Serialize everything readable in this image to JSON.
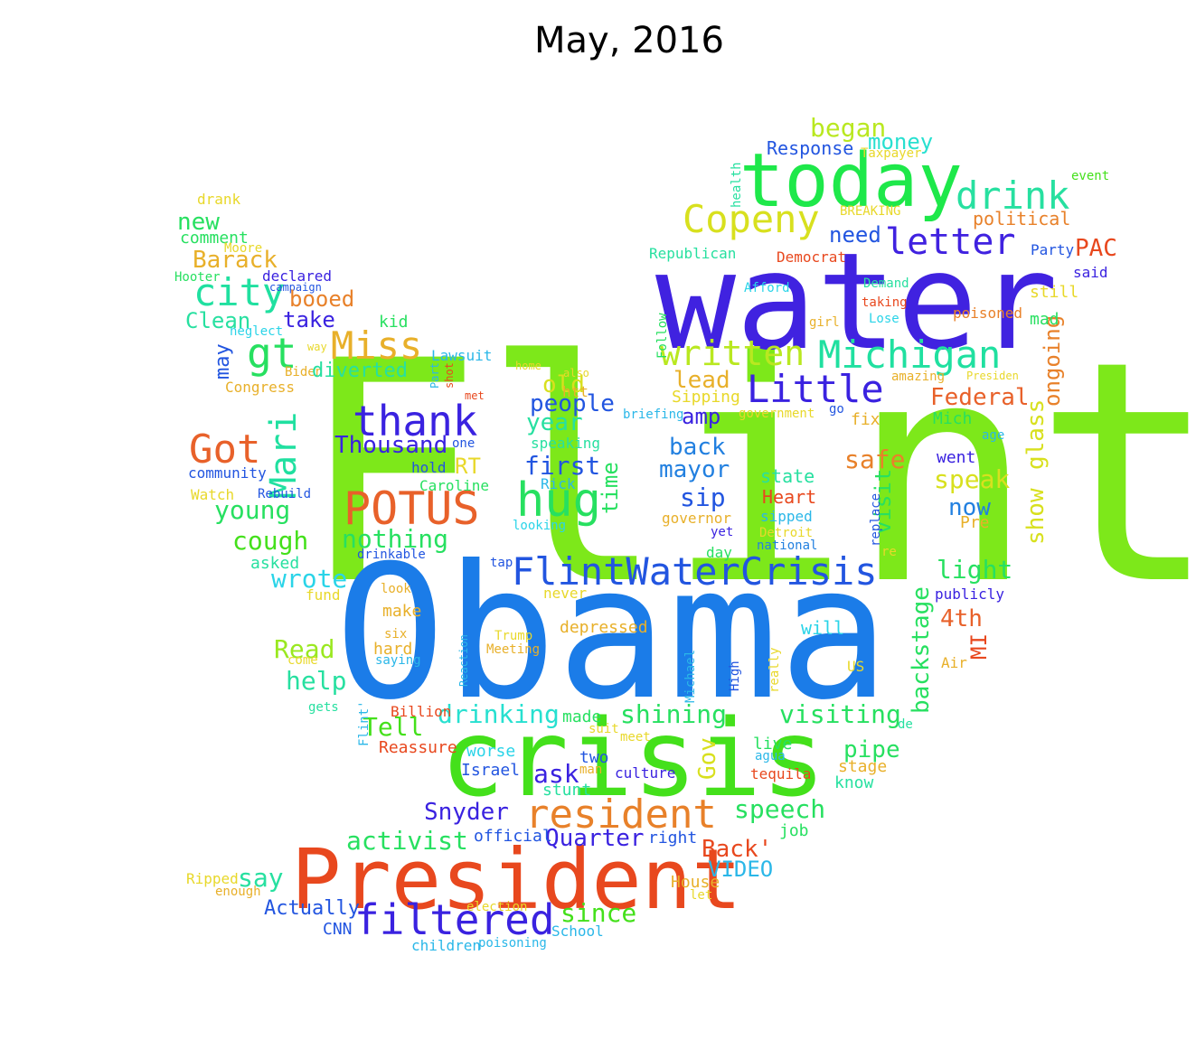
{
  "title": "May, 2016",
  "words": [
    {
      "text": "Flint",
      "color": "#7de81a"
    },
    {
      "text": "Obama",
      "color": "#1b7ce8"
    },
    {
      "text": "water",
      "color": "#4022e0"
    },
    {
      "text": "crisis",
      "color": "#44e01b"
    },
    {
      "text": "President",
      "color": "#e8481e"
    },
    {
      "text": "today",
      "color": "#1ee84a"
    },
    {
      "text": "FlintWaterCrisis",
      "color": "#2255e0"
    },
    {
      "text": "resident",
      "color": "#e8812a"
    },
    {
      "text": "Michigan",
      "color": "#20e0a0"
    },
    {
      "text": "POTUS",
      "color": "#e8612a"
    },
    {
      "text": "thank",
      "color": "#3a22e0"
    },
    {
      "text": "Copeny",
      "color": "#d8e01e"
    },
    {
      "text": "Little",
      "color": "#3a22e0"
    },
    {
      "text": "hug",
      "color": "#27e060"
    },
    {
      "text": "written",
      "color": "#b9e820"
    },
    {
      "text": "drink",
      "color": "#27e0a0"
    },
    {
      "text": "letter",
      "color": "#4022e0"
    },
    {
      "text": "filtered",
      "color": "#3a22e0"
    },
    {
      "text": "Got",
      "color": "#e8612a"
    },
    {
      "text": "Mari",
      "color": "#20e0a0"
    },
    {
      "text": "Miss",
      "color": "#e8b02a"
    },
    {
      "text": "city",
      "color": "#20e0a0"
    },
    {
      "text": "gt",
      "color": "#27e060"
    },
    {
      "text": "Barack",
      "color": "#e8b02a"
    },
    {
      "text": "shining",
      "color": "#27e060"
    },
    {
      "text": "visiting",
      "color": "#27e060"
    },
    {
      "text": "drinking",
      "color": "#27e0d0"
    },
    {
      "text": "backstage",
      "color": "#27e060"
    },
    {
      "text": "Snyder",
      "color": "#3a22e0"
    },
    {
      "text": "activist",
      "color": "#27e060"
    },
    {
      "text": "speech",
      "color": "#27e060"
    },
    {
      "text": "Quarter",
      "color": "#3a22e0"
    },
    {
      "text": "Back'",
      "color": "#e8481e"
    },
    {
      "text": "VIDEO",
      "color": "#2ab7e8"
    },
    {
      "text": "since",
      "color": "#44e01b"
    },
    {
      "text": "Tell",
      "color": "#44e01b"
    },
    {
      "text": "Thousand",
      "color": "#3a22e0"
    },
    {
      "text": "people",
      "color": "#2255e0"
    },
    {
      "text": "first",
      "color": "#2255e0"
    },
    {
      "text": "year",
      "color": "#27e0a0"
    },
    {
      "text": "old",
      "color": "#d8e01e"
    },
    {
      "text": "lead",
      "color": "#e8b02a"
    },
    {
      "text": "amp",
      "color": "#3a22e0"
    },
    {
      "text": "back",
      "color": "#2280e0"
    },
    {
      "text": "mayor",
      "color": "#2280e0"
    },
    {
      "text": "sip",
      "color": "#2255e0"
    },
    {
      "text": "time",
      "color": "#27e060"
    },
    {
      "text": "young",
      "color": "#27e060"
    },
    {
      "text": "cough",
      "color": "#44e01b"
    },
    {
      "text": "nothing",
      "color": "#27e060"
    },
    {
      "text": "wrote",
      "color": "#2ad4e8"
    },
    {
      "text": "Read",
      "color": "#9ae820"
    },
    {
      "text": "help",
      "color": "#27e0a0"
    },
    {
      "text": "say",
      "color": "#27e0a0"
    },
    {
      "text": "Actually",
      "color": "#2255e0"
    },
    {
      "text": "CNN",
      "color": "#2255e0"
    },
    {
      "text": "School",
      "color": "#2ab7e8"
    },
    {
      "text": "children",
      "color": "#2ab7e8"
    },
    {
      "text": "poisoning",
      "color": "#2ab7e8"
    },
    {
      "text": "election",
      "color": "#e8d82a"
    },
    {
      "text": "official",
      "color": "#2255e0"
    },
    {
      "text": "right",
      "color": "#2255e0"
    },
    {
      "text": "job",
      "color": "#27e060"
    },
    {
      "text": "House",
      "color": "#e8b02a"
    },
    {
      "text": "let",
      "color": "#e8d82a"
    },
    {
      "text": "Ripped",
      "color": "#e8d82a"
    },
    {
      "text": "enough",
      "color": "#e8b02a"
    },
    {
      "text": "Israel",
      "color": "#2255e0"
    },
    {
      "text": "ask",
      "color": "#3a22e0"
    },
    {
      "text": "stunt",
      "color": "#27e0a0"
    },
    {
      "text": "worse",
      "color": "#2ad4e8"
    },
    {
      "text": "two",
      "color": "#2255e0"
    },
    {
      "text": "man",
      "color": "#e8b02a"
    },
    {
      "text": "culture",
      "color": "#3a22e0"
    },
    {
      "text": "tequila",
      "color": "#e8481e"
    },
    {
      "text": "live",
      "color": "#27e060"
    },
    {
      "text": "agua",
      "color": "#2ab7e8"
    },
    {
      "text": "stage",
      "color": "#e8b02a"
    },
    {
      "text": "know",
      "color": "#27e0a0"
    },
    {
      "text": "pipe",
      "color": "#27e060"
    },
    {
      "text": "Reassure",
      "color": "#e8481e"
    },
    {
      "text": "Billion",
      "color": "#e8481e"
    },
    {
      "text": "made",
      "color": "#27e060"
    },
    {
      "text": "suit",
      "color": "#e8d82a"
    },
    {
      "text": "meet",
      "color": "#e8d82a"
    },
    {
      "text": "Gov",
      "color": "#d8e01e"
    },
    {
      "text": "safe",
      "color": "#e8812a"
    },
    {
      "text": "visit",
      "color": "#27e060"
    },
    {
      "text": "Federal",
      "color": "#e8612a"
    },
    {
      "text": "ongoing",
      "color": "#e8812a"
    },
    {
      "text": "glass",
      "color": "#d8e01e"
    },
    {
      "text": "show",
      "color": "#d8e01e"
    },
    {
      "text": "speak",
      "color": "#d8e01e"
    },
    {
      "text": "now",
      "color": "#2280e0"
    },
    {
      "text": "Pre",
      "color": "#e8b02a"
    },
    {
      "text": "went",
      "color": "#3a22e0"
    },
    {
      "text": "Mich",
      "color": "#27e060"
    },
    {
      "text": "age",
      "color": "#2ab7e8"
    },
    {
      "text": "light",
      "color": "#27e060"
    },
    {
      "text": "4th",
      "color": "#e8612a"
    },
    {
      "text": "MI",
      "color": "#e8481e"
    },
    {
      "text": "publicly",
      "color": "#3a22e0"
    },
    {
      "text": "Air",
      "color": "#e8b02a"
    },
    {
      "text": "US",
      "color": "#e8d82a"
    },
    {
      "text": "de",
      "color": "#27e0a0"
    },
    {
      "text": "depressed",
      "color": "#e8b02a"
    },
    {
      "text": "will",
      "color": "#2ad4e8"
    },
    {
      "text": "Heart",
      "color": "#e8481e"
    },
    {
      "text": "state",
      "color": "#27e0a0"
    },
    {
      "text": "sipped",
      "color": "#2ab7e8"
    },
    {
      "text": "governor",
      "color": "#e8b02a"
    },
    {
      "text": "Detroit",
      "color": "#e8d82a"
    },
    {
      "text": "national",
      "color": "#2280e0"
    },
    {
      "text": "day",
      "color": "#27e060"
    },
    {
      "text": "yet",
      "color": "#3a22e0"
    },
    {
      "text": "replace",
      "color": "#2255e0"
    },
    {
      "text": "re",
      "color": "#e8d82a"
    },
    {
      "text": "fix",
      "color": "#e8b02a"
    },
    {
      "text": "go",
      "color": "#2255e0"
    },
    {
      "text": "government",
      "color": "#e8d82a"
    },
    {
      "text": "Sipping",
      "color": "#e8d82a"
    },
    {
      "text": "briefing",
      "color": "#2ab7e8"
    },
    {
      "text": "money",
      "color": "#27e0d0"
    },
    {
      "text": "began",
      "color": "#b9e820"
    },
    {
      "text": "Response",
      "color": "#2255e0"
    },
    {
      "text": "Taxpayer",
      "color": "#e8d82a"
    },
    {
      "text": "need",
      "color": "#2255e0"
    },
    {
      "text": "BREAKING",
      "color": "#e8d82a"
    },
    {
      "text": "political",
      "color": "#e8812a"
    },
    {
      "text": "PAC",
      "color": "#e8481e"
    },
    {
      "text": "Party",
      "color": "#2255e0"
    },
    {
      "text": "said",
      "color": "#3a22e0"
    },
    {
      "text": "still",
      "color": "#e8d82a"
    },
    {
      "text": "mad",
      "color": "#27e060"
    },
    {
      "text": "poisoned",
      "color": "#e8812a"
    },
    {
      "text": "event",
      "color": "#44e01b"
    },
    {
      "text": "Republican",
      "color": "#27e0a0"
    },
    {
      "text": "Democrat",
      "color": "#e8481e"
    },
    {
      "text": "Afford",
      "color": "#2ad4e8"
    },
    {
      "text": "Demand",
      "color": "#27e0a0"
    },
    {
      "text": "taking",
      "color": "#e8481e"
    },
    {
      "text": "Lose",
      "color": "#2ad4e8"
    },
    {
      "text": "girl",
      "color": "#e8b02a"
    },
    {
      "text": "amazing",
      "color": "#e8b02a"
    },
    {
      "text": "Presiden",
      "color": "#e8d82a"
    },
    {
      "text": "health",
      "color": "#27e0a0"
    },
    {
      "text": "Follow",
      "color": "#27e060"
    },
    {
      "text": "new",
      "color": "#27e060"
    },
    {
      "text": "comment",
      "color": "#27e060"
    },
    {
      "text": "drank",
      "color": "#e8d82a"
    },
    {
      "text": "Moore",
      "color": "#e8d82a"
    },
    {
      "text": "Hooter",
      "color": "#27e060"
    },
    {
      "text": "declared",
      "color": "#3a22e0"
    },
    {
      "text": "campaign",
      "color": "#2255e0"
    },
    {
      "text": "booed",
      "color": "#e8812a"
    },
    {
      "text": "take",
      "color": "#3a22e0"
    },
    {
      "text": "Clean",
      "color": "#27e0a0"
    },
    {
      "text": "neglect",
      "color": "#2ad4e8"
    },
    {
      "text": "kid",
      "color": "#27e060"
    },
    {
      "text": "may",
      "color": "#2255e0"
    },
    {
      "text": "way",
      "color": "#e8d82a"
    },
    {
      "text": "Biden",
      "color": "#e8b02a"
    },
    {
      "text": "diverted",
      "color": "#27e0a0"
    },
    {
      "text": "Congress",
      "color": "#e8b02a"
    },
    {
      "text": "Lawsuit",
      "color": "#2ab7e8"
    },
    {
      "text": "home",
      "color": "#e8d82a"
    },
    {
      "text": "also",
      "color": "#e8d82a"
    },
    {
      "text": "htt",
      "color": "#e8b02a"
    },
    {
      "text": "Part",
      "color": "#2ab7e8"
    },
    {
      "text": "shot",
      "color": "#e8481e"
    },
    {
      "text": "met",
      "color": "#e8481e"
    },
    {
      "text": "RT",
      "color": "#e8d82a"
    },
    {
      "text": "one",
      "color": "#2255e0"
    },
    {
      "text": "hold",
      "color": "#2255e0"
    },
    {
      "text": "speaking",
      "color": "#27e0a0"
    },
    {
      "text": "Caroline",
      "color": "#27e060"
    },
    {
      "text": "Rick",
      "color": "#2ab7e8"
    },
    {
      "text": "looking",
      "color": "#2ad4e8"
    },
    {
      "text": "community",
      "color": "#2255e0"
    },
    {
      "text": "Watch",
      "color": "#e8d82a"
    },
    {
      "text": "Rebuild",
      "color": "#2255e0"
    },
    {
      "text": "asked",
      "color": "#27e0a0"
    },
    {
      "text": "fund",
      "color": "#e8d82a"
    },
    {
      "text": "drinkable",
      "color": "#2255e0"
    },
    {
      "text": "tap",
      "color": "#2255e0"
    },
    {
      "text": "look",
      "color": "#e8b02a"
    },
    {
      "text": "never",
      "color": "#e8d82a"
    },
    {
      "text": "make",
      "color": "#e8b02a"
    },
    {
      "text": "six",
      "color": "#e8b02a"
    },
    {
      "text": "hard",
      "color": "#e8b02a"
    },
    {
      "text": "saying",
      "color": "#2ab7e8"
    },
    {
      "text": "come",
      "color": "#e8d82a"
    },
    {
      "text": "Trump",
      "color": "#e8d82a"
    },
    {
      "text": "Meeting",
      "color": "#e8b02a"
    },
    {
      "text": "Reaction",
      "color": "#2ab7e8"
    },
    {
      "text": "Michael",
      "color": "#2ab7e8"
    },
    {
      "text": "High",
      "color": "#2255e0"
    },
    {
      "text": "really",
      "color": "#e8d82a"
    },
    {
      "text": "gets",
      "color": "#27e0a0"
    },
    {
      "text": "Flint'",
      "color": "#2ab7e8"
    }
  ]
}
